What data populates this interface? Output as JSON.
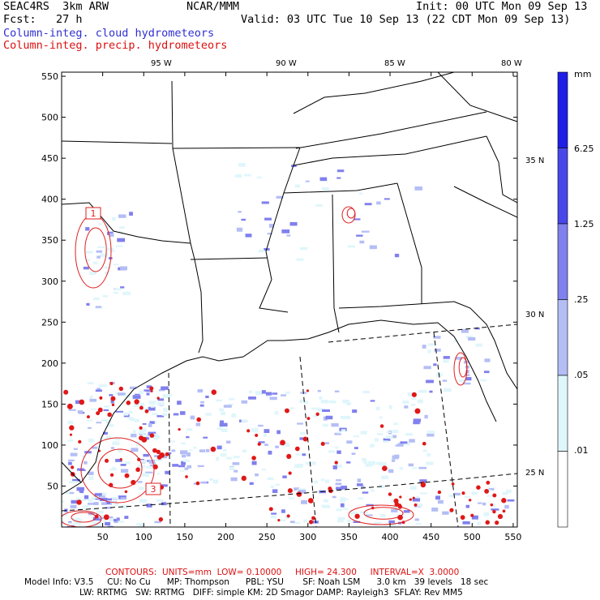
{
  "header": {
    "model": "SEAC4RS  3km ARW",
    "center": "NCAR/MMM",
    "init": "Init: 00 UTC Mon 09 Sep 13",
    "fcst": "Fcst:   27 h",
    "valid": "Valid: 03 UTC Tue 10 Sep 13 (22 CDT Mon 09 Sep 13)",
    "field1": "Column-integ. cloud hydrometeors",
    "field2": "Column-integ. precip. hydrometeors"
  },
  "colors": {
    "cloud_field": "#3030d0",
    "precip_field": "#dd1010",
    "border_lines": "#000000"
  },
  "map_axes": {
    "x_ticks": [
      "50",
      "100",
      "150",
      "200",
      "250",
      "300",
      "350",
      "400",
      "450",
      "500",
      "550"
    ],
    "y_ticks": [
      "550",
      "500",
      "450",
      "400",
      "350",
      "300",
      "250",
      "200",
      "150",
      "100",
      "50"
    ],
    "lon_labels": [
      "95 W",
      "90 W",
      "85 W",
      "80 W"
    ],
    "lat_labels": [
      "35 N",
      "30 N",
      "25 N"
    ]
  },
  "contour_labels": [
    "1",
    "3"
  ],
  "colorbar": {
    "unit": "mm",
    "labels": [
      "6.25",
      "1.25",
      ".25",
      ".05",
      ".01"
    ],
    "colors": [
      "#1e1ee6",
      "#4848ea",
      "#8080ee",
      "#b4bef5",
      "#dff6fb",
      "#ffffff"
    ]
  },
  "footer": {
    "contours": "CONTOURS:  UNITS=mm  LOW= 0.10000     HIGH= 24.300     INTERVAL=X  3.0000",
    "model_info_1": "Model Info: V3.5     CU: No Cu      MP: Thompson      PBL: YSU       SF: Noah LSM      3.0 km   39 levels   18 sec",
    "model_info_2": "LW: RRTMG   SW: RRTMG   DIFF: simple KM: 2D Smagor DAMP: Rayleigh3  SFLAY: Rev MM5"
  }
}
